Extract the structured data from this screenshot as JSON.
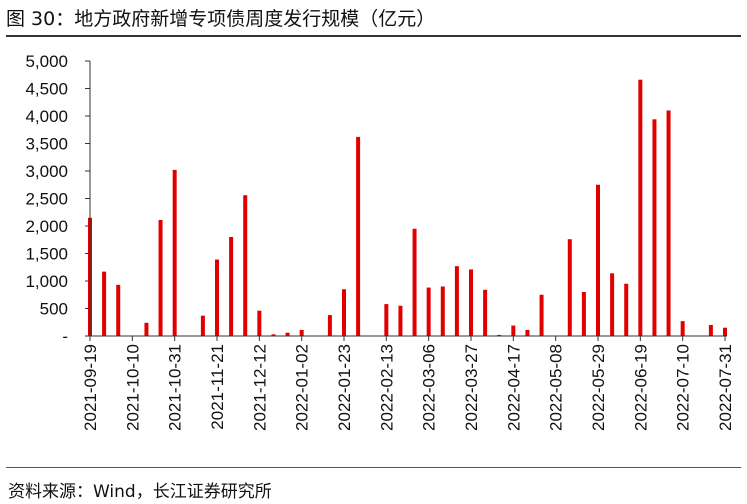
{
  "title": "图 30：地方政府新增专项债周度发行规模（亿元）",
  "source": "资料来源：Wind，长江证券研究所",
  "colors": {
    "bar": "#e00000",
    "axis": "#333333"
  },
  "chart_data": {
    "type": "bar",
    "title": "图 30：地方政府新增专项债周度发行规模（亿元）",
    "ylim": [
      0,
      5000
    ],
    "yticks": [
      0,
      500,
      1000,
      1500,
      2000,
      2500,
      3000,
      3500,
      4000,
      4500,
      5000
    ],
    "ytick_labels": [
      "-",
      "500",
      "1,000",
      "1,500",
      "2,000",
      "2,500",
      "3,000",
      "3,500",
      "4,000",
      "4,500",
      "5,000"
    ],
    "grid": false,
    "categories": [
      "2021-09-19",
      "2021-09-26",
      "2021-10-03",
      "2021-10-10",
      "2021-10-17",
      "2021-10-24",
      "2021-10-31",
      "2021-11-07",
      "2021-11-14",
      "2021-11-21",
      "2021-11-28",
      "2021-12-05",
      "2021-12-12",
      "2021-12-19",
      "2021-12-26",
      "2022-01-02",
      "2022-01-09",
      "2022-01-16",
      "2022-01-23",
      "2022-01-30",
      "2022-02-06",
      "2022-02-13",
      "2022-02-20",
      "2022-02-27",
      "2022-03-06",
      "2022-03-13",
      "2022-03-20",
      "2022-03-27",
      "2022-04-03",
      "2022-04-10",
      "2022-04-17",
      "2022-04-24",
      "2022-05-01",
      "2022-05-08",
      "2022-05-15",
      "2022-05-22",
      "2022-05-29",
      "2022-06-05",
      "2022-06-12",
      "2022-06-19",
      "2022-06-26",
      "2022-07-03",
      "2022-07-10",
      "2022-07-17",
      "2022-07-24",
      "2022-07-31"
    ],
    "values": [
      2150,
      1170,
      930,
      0,
      240,
      2110,
      3020,
      0,
      370,
      1390,
      1800,
      2560,
      460,
      30,
      60,
      110,
      0,
      380,
      850,
      3620,
      0,
      580,
      550,
      1950,
      880,
      900,
      1270,
      1210,
      840,
      20,
      190,
      110,
      750,
      0,
      1760,
      800,
      2750,
      1140,
      950,
      4660,
      3940,
      4100,
      270,
      0,
      200,
      150
    ],
    "xtick_labels": [
      "2021-09-19",
      "2021-10-10",
      "2021-10-31",
      "2021-11-21",
      "2021-12-12",
      "2022-01-02",
      "2022-01-23",
      "2022-02-13",
      "2022-03-06",
      "2022-03-27",
      "2022-04-17",
      "2022-05-08",
      "2022-05-29",
      "2022-06-19",
      "2022-07-10",
      "2022-07-31"
    ]
  }
}
